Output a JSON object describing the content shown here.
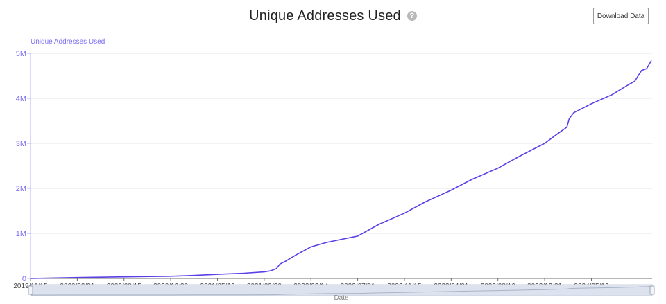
{
  "header": {
    "title": "Unique Addresses Used",
    "help_icon": "question-circle-icon",
    "download_label": "Download Data"
  },
  "colors": {
    "line": "#5b3ee6",
    "axis_text": "#7b6df0",
    "grid": "#e6e6e6",
    "slider_fill": "#dde3ee"
  },
  "chart_data": {
    "type": "line",
    "title": "Unique Addresses Used",
    "ylabel": "Unique Addresses Used",
    "xlabel": "Date",
    "ylim": [
      0,
      5000000
    ],
    "yticks": [
      {
        "value": 0,
        "label": "0"
      },
      {
        "value": 1000000,
        "label": "1M"
      },
      {
        "value": 2000000,
        "label": "2M"
      },
      {
        "value": 3000000,
        "label": "3M"
      },
      {
        "value": 4000000,
        "label": "4M"
      },
      {
        "value": 5000000,
        "label": "5M"
      }
    ],
    "xlim": [
      "2019-11-15",
      "2024-11-10"
    ],
    "xticks": [
      {
        "date": "2019-11-15",
        "label": "2019/11/15"
      },
      {
        "date": "2020-03-31",
        "label": "2020/03/31"
      },
      {
        "date": "2020-08-15",
        "label": "2020/08/15"
      },
      {
        "date": "2020-12-30",
        "label": "2020/12/30"
      },
      {
        "date": "2021-05-16",
        "label": "2021/05/16"
      },
      {
        "date": "2021-09-30",
        "label": "2021/09/30"
      },
      {
        "date": "2022-02-14",
        "label": "2022/02/14"
      },
      {
        "date": "2022-07-01",
        "label": "2022/07/01"
      },
      {
        "date": "2022-11-15",
        "label": "2022/11/15"
      },
      {
        "date": "2023-04-01",
        "label": "2023/04/01"
      },
      {
        "date": "2023-08-16",
        "label": "2023/08/16"
      },
      {
        "date": "2023-12-31",
        "label": "2023/12/31"
      },
      {
        "date": "2024-05-16",
        "label": "2024/05/16"
      }
    ],
    "grid": true,
    "legend": "none",
    "series": [
      {
        "points": [
          [
            "2019-11-15",
            0
          ],
          [
            "2020-03-31",
            20000
          ],
          [
            "2020-08-15",
            35000
          ],
          [
            "2020-12-30",
            50000
          ],
          [
            "2021-03-01",
            65000
          ],
          [
            "2021-05-16",
            90000
          ],
          [
            "2021-08-01",
            115000
          ],
          [
            "2021-09-30",
            145000
          ],
          [
            "2021-10-20",
            170000
          ],
          [
            "2021-11-05",
            220000
          ],
          [
            "2021-11-15",
            320000
          ],
          [
            "2021-12-01",
            380000
          ],
          [
            "2022-01-01",
            520000
          ],
          [
            "2022-02-14",
            700000
          ],
          [
            "2022-04-01",
            800000
          ],
          [
            "2022-07-01",
            940000
          ],
          [
            "2022-09-01",
            1200000
          ],
          [
            "2022-11-15",
            1450000
          ],
          [
            "2023-01-15",
            1700000
          ],
          [
            "2023-04-01",
            1960000
          ],
          [
            "2023-06-01",
            2200000
          ],
          [
            "2023-08-16",
            2450000
          ],
          [
            "2023-10-15",
            2700000
          ],
          [
            "2023-12-31",
            3000000
          ],
          [
            "2024-02-01",
            3180000
          ],
          [
            "2024-03-05",
            3360000
          ],
          [
            "2024-03-12",
            3550000
          ],
          [
            "2024-03-25",
            3680000
          ],
          [
            "2024-05-16",
            3880000
          ],
          [
            "2024-07-15",
            4080000
          ],
          [
            "2024-09-01",
            4300000
          ],
          [
            "2024-09-20",
            4380000
          ],
          [
            "2024-10-10",
            4620000
          ],
          [
            "2024-10-25",
            4660000
          ],
          [
            "2024-11-08",
            4840000
          ]
        ]
      }
    ]
  }
}
